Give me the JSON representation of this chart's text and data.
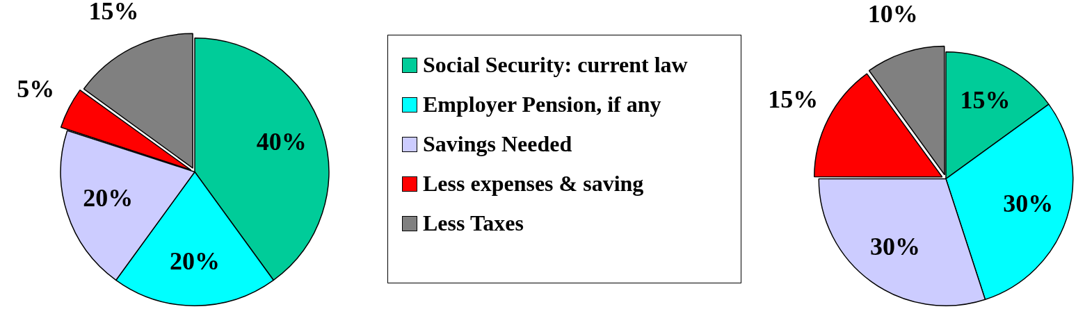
{
  "chart_data": [
    {
      "type": "pie",
      "categories": [
        "Social Security: current law",
        "Employer Pension, if any",
        "Savings Needed",
        "Less expenses & saving",
        "Less Taxes"
      ],
      "values": [
        40,
        20,
        20,
        5,
        15
      ],
      "colors": [
        "#00cc99",
        "#00ffff",
        "#ccccff",
        "#ff0000",
        "#808080"
      ],
      "value_labels": [
        "40%",
        "20%",
        "20%",
        "5%",
        "15%"
      ],
      "legend": "right"
    },
    {
      "type": "pie",
      "categories": [
        null,
        null,
        null,
        null,
        null
      ],
      "values": [
        15,
        30,
        30,
        15,
        10
      ],
      "colors": [
        "#00cc99",
        "#00ffff",
        "#ccccff",
        "#ff0000",
        "#808080"
      ],
      "value_labels": [
        "15%",
        "30%",
        "30%",
        "15%",
        "10%"
      ]
    }
  ]
}
